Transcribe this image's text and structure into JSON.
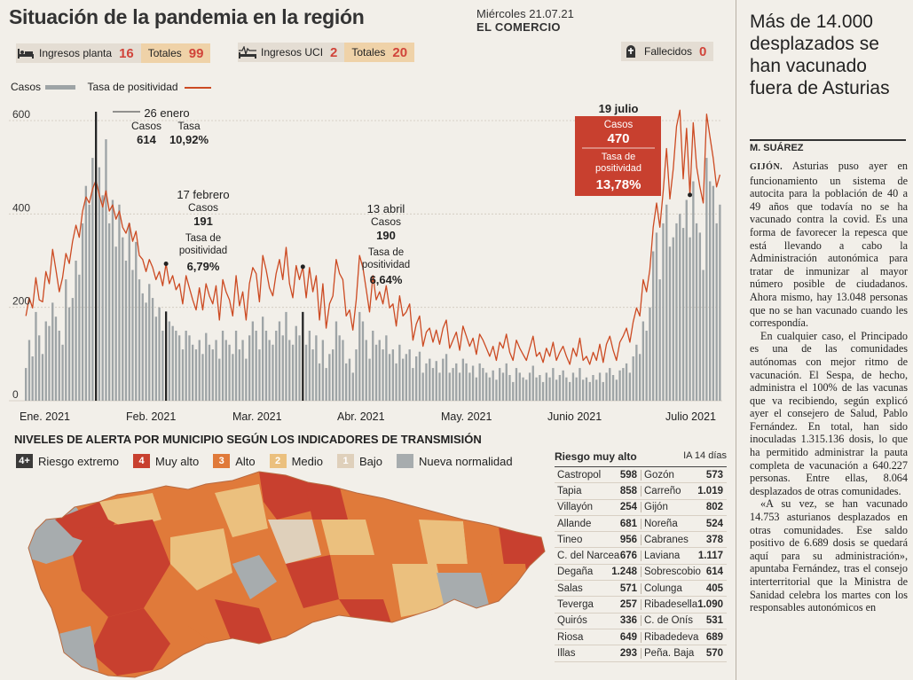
{
  "header": {
    "title": "Situación de la pandemia en la región",
    "date": "Miércoles 21.07.21",
    "newspaper": "EL COMERCIO"
  },
  "stats": {
    "plant_label": "Ingresos planta",
    "plant_value": "16",
    "plant_total_label": "Totales",
    "plant_total_value": "99",
    "icu_label": "Ingresos UCI",
    "icu_value": "2",
    "icu_total_label": "Totales",
    "icu_total_value": "20",
    "deaths_label": "Fallecidos",
    "deaths_value": "0"
  },
  "legend": {
    "cases": "Casos",
    "rate": "Tasa de positividad"
  },
  "colors": {
    "bars": "#9ea4a6",
    "line": "#cc4a22",
    "accent": "#d1443a",
    "highlight_box": "#c8402f"
  },
  "chart_data": {
    "type": "bar",
    "ylim": [
      0,
      600
    ],
    "yticks": [
      "600",
      "400",
      "200",
      "0"
    ],
    "months": [
      "Ene. 2021",
      "Feb. 2021",
      "Mar. 2021",
      "Abr. 2021",
      "May. 2021",
      "Junio 2021",
      "Julio 2021"
    ],
    "series": [
      {
        "name": "Casos",
        "type": "bar",
        "values": [
          70,
          130,
          95,
          190,
          140,
          100,
          170,
          160,
          210,
          180,
          150,
          120,
          260,
          200,
          220,
          300,
          270,
          380,
          460,
          420,
          520,
          614,
          500,
          440,
          560,
          380,
          430,
          330,
          420,
          350,
          300,
          380,
          280,
          340,
          260,
          230,
          210,
          250,
          220,
          180,
          200,
          150,
          191,
          170,
          160,
          150,
          140,
          110,
          150,
          140,
          120,
          110,
          130,
          100,
          145,
          120,
          110,
          130,
          90,
          150,
          130,
          120,
          100,
          150,
          110,
          130,
          90,
          140,
          170,
          150,
          110,
          180,
          150,
          130,
          120,
          150,
          170,
          140,
          190,
          130,
          120,
          160,
          140,
          190,
          120,
          150,
          110,
          140,
          80,
          130,
          70,
          100,
          110,
          170,
          140,
          130,
          80,
          90,
          60,
          110,
          190,
          170,
          130,
          90,
          150,
          120,
          130,
          110,
          140,
          100,
          110,
          80,
          120,
          90,
          100,
          110,
          70,
          95,
          105,
          60,
          80,
          90,
          70,
          85,
          60,
          90,
          100,
          60,
          70,
          80,
          60,
          90,
          80,
          60,
          75,
          50,
          80,
          70,
          60,
          50,
          65,
          45,
          70,
          60,
          80,
          55,
          40,
          70,
          60,
          50,
          45,
          60,
          75,
          50,
          55,
          40,
          60,
          50,
          70,
          45,
          55,
          65,
          50,
          40,
          60,
          50,
          70,
          45,
          50,
          40,
          55,
          45,
          60,
          40,
          60,
          70,
          55,
          45,
          65,
          70,
          80,
          60,
          95,
          120,
          100,
          170,
          150,
          200,
          320,
          360,
          260,
          380,
          420,
          330,
          350,
          380,
          400,
          370,
          430,
          350,
          470,
          380,
          360,
          280,
          520,
          470,
          460,
          380,
          420
        ]
      },
      {
        "name": "Tasa de positividad",
        "type": "line",
        "values": [
          4.2,
          5.1,
          4.6,
          6.1,
          5.0,
          4.9,
          6.4,
          5.8,
          7.5,
          6.5,
          5.4,
          6.1,
          7.3,
          6.8,
          7.9,
          8.7,
          8.1,
          9.4,
          10.1,
          9.8,
          10.5,
          10.92,
          10.2,
          9.6,
          10.4,
          9.4,
          9.7,
          9.0,
          9.4,
          8.6,
          8.3,
          8.8,
          7.9,
          8.4,
          7.2,
          7.0,
          6.4,
          7.0,
          6.6,
          6.0,
          6.4,
          5.7,
          6.79,
          5.8,
          6.2,
          5.5,
          5.8,
          4.8,
          6.2,
          5.6,
          5.0,
          4.5,
          5.6,
          4.5,
          5.8,
          5.2,
          4.8,
          5.7,
          4.0,
          6.0,
          5.4,
          5.0,
          4.2,
          6.2,
          4.7,
          5.4,
          4.0,
          5.8,
          6.6,
          6.3,
          4.9,
          7.2,
          6.5,
          5.6,
          5.2,
          6.3,
          7.0,
          6.0,
          7.6,
          5.8,
          5.1,
          6.7,
          6.0,
          6.64,
          5.1,
          6.6,
          5.4,
          6.2,
          4.0,
          5.8,
          3.6,
          4.8,
          5.2,
          7.0,
          6.3,
          6.0,
          4.2,
          4.5,
          3.5,
          5.0,
          7.2,
          6.6,
          5.5,
          4.4,
          6.2,
          5.0,
          5.4,
          4.8,
          5.7,
          4.6,
          4.8,
          3.7,
          5.2,
          4.2,
          4.4,
          4.8,
          3.0,
          3.8,
          4.2,
          2.7,
          3.4,
          3.6,
          2.9,
          3.5,
          2.8,
          3.6,
          4.0,
          2.6,
          3.0,
          3.4,
          2.5,
          3.7,
          3.2,
          2.7,
          3.1,
          2.3,
          3.3,
          3.0,
          2.6,
          2.2,
          2.7,
          2.0,
          2.9,
          2.6,
          3.3,
          2.4,
          2.0,
          3.0,
          2.6,
          2.3,
          2.0,
          2.6,
          3.2,
          2.2,
          2.4,
          1.9,
          2.6,
          2.2,
          2.9,
          2.0,
          2.4,
          2.7,
          2.2,
          1.8,
          2.6,
          2.2,
          3.1,
          2.0,
          2.2,
          1.8,
          2.4,
          2.0,
          2.8,
          1.9,
          2.8,
          3.2,
          2.5,
          2.0,
          2.9,
          3.2,
          3.6,
          2.9,
          3.9,
          4.6,
          4.2,
          6.0,
          5.4,
          6.5,
          8.6,
          9.8,
          8.6,
          10.4,
          12.5,
          10.0,
          11.5,
          13.6,
          14.4,
          11.0,
          13.5,
          10.2,
          13.78,
          11.6,
          10.6,
          9.8,
          14.2,
          13.1,
          12.0,
          10.6,
          11.2
        ]
      }
    ],
    "annotations": [
      {
        "date": "26 enero",
        "cases_label": "Casos",
        "cases": "614",
        "rate_label": "Tasa",
        "rate": "10,92%"
      },
      {
        "date": "17 febrero",
        "cases_label": "Casos",
        "cases": "191",
        "rate_label": "Tasa de positividad",
        "rate": "6,79%"
      },
      {
        "date": "13 abril",
        "cases_label": "Casos",
        "cases": "190",
        "rate_label": "Tasa de positividad",
        "rate": "6,64%"
      },
      {
        "date": "19 julio",
        "cases_label": "Casos",
        "cases": "470",
        "rate_label": "Tasa de positividad",
        "rate": "13,78%"
      }
    ]
  },
  "map": {
    "title": "NIVELES DE ALERTA POR MUNICIPIO SEGÚN LOS INDICADORES DE TRANSMISIÓN",
    "levels": [
      {
        "num": "4+",
        "label": "Riesgo extremo",
        "color": "#3b3a39"
      },
      {
        "num": "4",
        "label": "Muy alto",
        "color": "#c8402f"
      },
      {
        "num": "3",
        "label": "Alto",
        "color": "#e07a3a"
      },
      {
        "num": "2",
        "label": "Medio",
        "color": "#ebc07e"
      },
      {
        "num": "1",
        "label": "Bajo",
        "color": "#dfd0bb"
      },
      {
        "num": "",
        "label": "Nueva normalidad",
        "color": "#a7acae"
      }
    ]
  },
  "risk_table": {
    "title": "Riesgo muy alto",
    "subtitle": "IA 14 días",
    "rows": [
      [
        "Castropol",
        "598",
        "Gozón",
        "573"
      ],
      [
        "Tapia",
        "858",
        "Carreño",
        "1.019"
      ],
      [
        "Villayón",
        "254",
        "Gijón",
        "802"
      ],
      [
        "Allande",
        "681",
        "Noreña",
        "524"
      ],
      [
        "Tineo",
        "956",
        "Cabranes",
        "378"
      ],
      [
        "C. del Narcea",
        "676",
        "Laviana",
        "1.117"
      ],
      [
        "Degaña",
        "1.248",
        "Sobrescobio",
        "614"
      ],
      [
        "Salas",
        "571",
        "Colunga",
        "405"
      ],
      [
        "Teverga",
        "257",
        "Ribadesella",
        "1.090"
      ],
      [
        "Quirós",
        "336",
        "C. de Onís",
        "531"
      ],
      [
        "Riosa",
        "649",
        "Ribadedeva",
        "689"
      ],
      [
        "Illas",
        "293",
        "Peña. Baja",
        "570"
      ]
    ]
  },
  "article": {
    "headline": "Más de 14.000 desplazados se han vacunado fuera de Asturias",
    "byline": "M. SUÁREZ",
    "lead": "GIJÓN.",
    "p1": "Asturias puso ayer en funcionamiento un sistema de autocita para la población de 40 a 49 años que todavía no se ha vacunado contra la covid. Es una forma de favorecer la repesca que está llevando a cabo la Administración autonómica para tratar de inmunizar al mayor número posible de ciudadanos. Ahora mismo, hay 13.048 personas que no se han vacunado cuando les correspondía.",
    "p2": "En cualquier caso, el Principado es una de las comunidades autónomas con mejor ritmo de vacunación. El Sespa, de hecho, administra el 100% de las vacunas que va recibiendo, según explicó ayer el consejero de Salud, Pablo Fernández. En total, han sido inoculadas 1.315.136 dosis, lo que ha permitido administrar la pauta completa de vacunación a 640.227 personas. Entre ellas, 8.064 desplazados de otras comunidades.",
    "p3": "«A su vez, se han vacunado 14.753 asturianos desplazados en otras comunidades. Ese saldo positivo de 6.689 dosis se quedará aquí para su administración», apuntaba Fernández, tras el consejo interterritorial que la Ministra de Sanidad celebra los martes con los responsables autonómicos en"
  }
}
